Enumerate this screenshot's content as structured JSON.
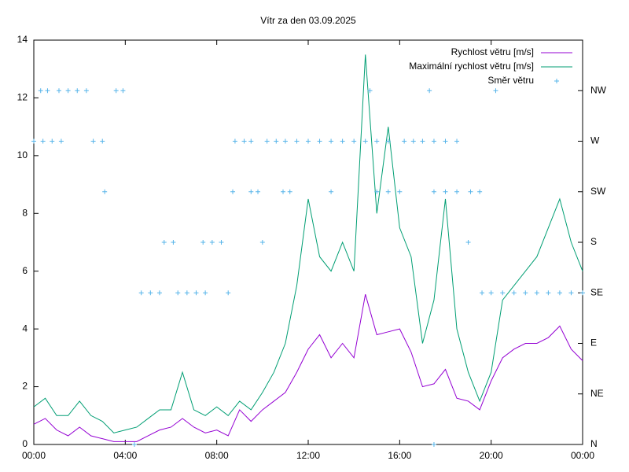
{
  "chart_data": {
    "type": "line",
    "title": "Vítr za den 03.09.2025",
    "x": [
      0,
      0.5,
      1,
      1.5,
      2,
      2.5,
      3,
      3.5,
      4,
      4.5,
      5,
      5.5,
      6,
      6.5,
      7,
      7.5,
      8,
      8.5,
      9,
      9.5,
      10,
      10.5,
      11,
      11.5,
      12,
      12.5,
      13,
      13.5,
      14,
      14.5,
      15,
      15.5,
      16,
      16.5,
      17,
      17.5,
      18,
      18.5,
      19,
      19.5,
      20,
      20.5,
      21,
      21.5,
      22,
      22.5,
      23,
      23.5,
      24
    ],
    "series": [
      {
        "name": "Rychlost větru [m/s]",
        "color": "#9400d3",
        "values": [
          0.7,
          0.9,
          0.5,
          0.3,
          0.6,
          0.3,
          0.2,
          0.1,
          0.1,
          0.1,
          0.3,
          0.5,
          0.6,
          0.9,
          0.6,
          0.4,
          0.5,
          0.3,
          1.2,
          0.8,
          1.2,
          1.5,
          1.8,
          2.5,
          3.3,
          3.8,
          3.0,
          3.5,
          3.0,
          5.2,
          3.8,
          3.9,
          4.0,
          3.2,
          2.0,
          2.1,
          2.6,
          1.6,
          1.5,
          1.2,
          2.2,
          3.0,
          3.3,
          3.5,
          3.5,
          3.7,
          4.1,
          3.3,
          2.9
        ]
      },
      {
        "name": "Maximální rychlost větru [m/s]",
        "color": "#009e73",
        "values": [
          1.3,
          1.6,
          1.0,
          1.0,
          1.5,
          1.0,
          0.8,
          0.4,
          0.5,
          0.6,
          0.9,
          1.2,
          1.2,
          2.5,
          1.2,
          1.0,
          1.3,
          1.0,
          1.5,
          1.2,
          1.8,
          2.5,
          3.5,
          5.5,
          8.5,
          6.5,
          6.0,
          7.0,
          6.0,
          13.5,
          8.0,
          11.0,
          7.5,
          6.5,
          3.5,
          5.0,
          8.5,
          4.0,
          2.5,
          1.5,
          2.5,
          5.0,
          5.5,
          6.0,
          6.5,
          7.5,
          8.5,
          7.0,
          6.0
        ]
      },
      {
        "name": "Směr větru",
        "color": "#56b4e9",
        "type": "scatter",
        "axis": "y2",
        "x": [
          0.3,
          0.6,
          1.1,
          1.5,
          1.9,
          2.3,
          3.6,
          3.9,
          14.7,
          17.3,
          20.2,
          0,
          0.4,
          0.8,
          1.2,
          2.6,
          3.0,
          8.8,
          9.2,
          9.5,
          10.2,
          10.6,
          11.0,
          11.5,
          12,
          12.5,
          13,
          13.5,
          14,
          14.5,
          15,
          15.5,
          16.2,
          16.6,
          17,
          17.5,
          18,
          18.5,
          3.1,
          8.7,
          9.5,
          9.8,
          10.9,
          11.2,
          13.0,
          15.0,
          15.5,
          16.0,
          17.5,
          18.0,
          18.5,
          19.1,
          19.5,
          5.7,
          6.1,
          7.4,
          7.8,
          8.2,
          10.0,
          19.0,
          4.7,
          5.1,
          5.5,
          6.3,
          6.7,
          7.1,
          7.5,
          8.5,
          19.6,
          20,
          20.5,
          21,
          21.5,
          22,
          22.5,
          23,
          23.5,
          24,
          4.4,
          17.5
        ],
        "values": [
          315,
          315,
          315,
          315,
          315,
          315,
          315,
          315,
          315,
          315,
          315,
          270,
          270,
          270,
          270,
          270,
          270,
          270,
          270,
          270,
          270,
          270,
          270,
          270,
          270,
          270,
          270,
          270,
          270,
          270,
          270,
          270,
          270,
          270,
          270,
          270,
          270,
          270,
          225,
          225,
          225,
          225,
          225,
          225,
          225,
          225,
          225,
          225,
          225,
          225,
          225,
          225,
          225,
          180,
          180,
          180,
          180,
          180,
          180,
          180,
          135,
          135,
          135,
          135,
          135,
          135,
          135,
          135,
          135,
          135,
          135,
          135,
          135,
          135,
          135,
          135,
          135,
          135,
          0,
          0
        ]
      }
    ],
    "xlim": [
      0,
      24
    ],
    "xticks": [
      {
        "value": 0,
        "label": "00:00"
      },
      {
        "value": 4,
        "label": "04:00"
      },
      {
        "value": 8,
        "label": "08:00"
      },
      {
        "value": 12,
        "label": "12:00"
      },
      {
        "value": 16,
        "label": "16:00"
      },
      {
        "value": 20,
        "label": "20:00"
      },
      {
        "value": 24,
        "label": "00:00"
      }
    ],
    "ylim": [
      0,
      14
    ],
    "yticks": [
      0,
      2,
      4,
      6,
      8,
      10,
      12,
      14
    ],
    "y2lim": [
      0,
      360
    ],
    "y2ticks": [
      {
        "value": 0,
        "label": "N"
      },
      {
        "value": 45,
        "label": "NE"
      },
      {
        "value": 90,
        "label": "E"
      },
      {
        "value": 135,
        "label": "SE"
      },
      {
        "value": 180,
        "label": "S"
      },
      {
        "value": 225,
        "label": "SW"
      },
      {
        "value": 270,
        "label": "W"
      },
      {
        "value": 315,
        "label": "NW"
      }
    ],
    "legend": "top-right"
  }
}
